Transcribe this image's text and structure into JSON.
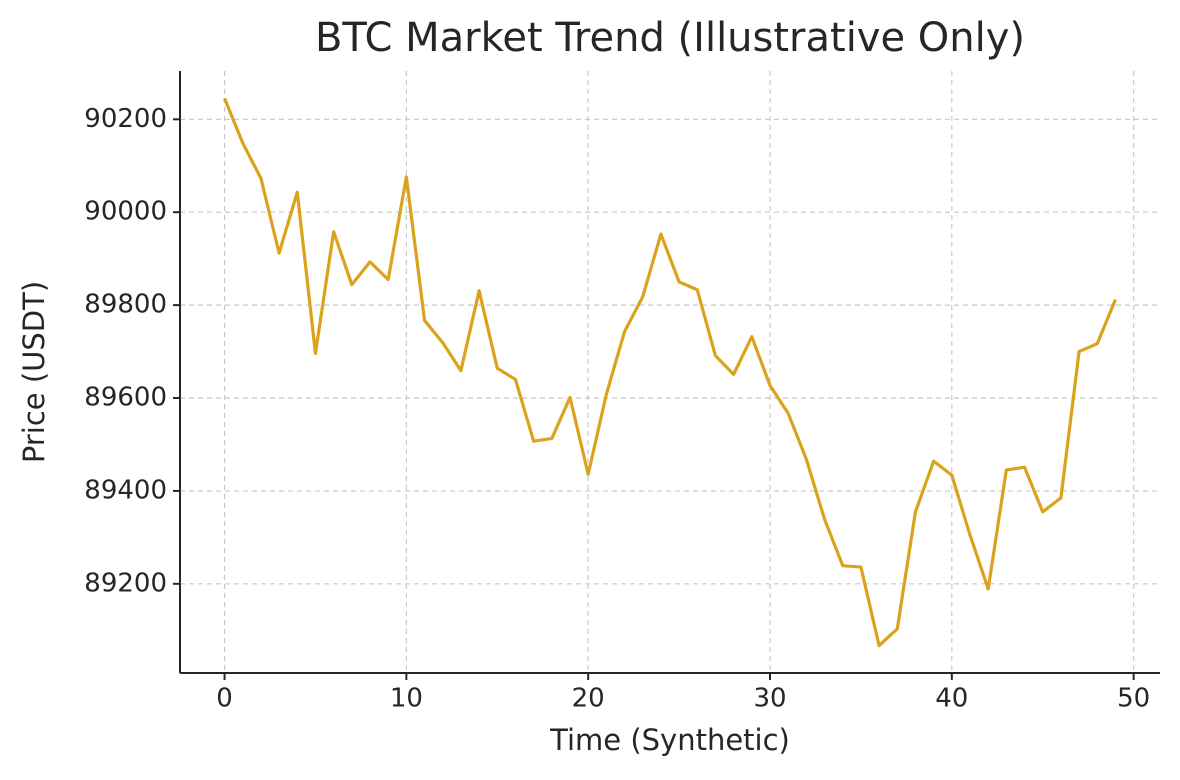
{
  "chart_data": {
    "type": "line",
    "title": "BTC Market Trend (Illustrative Only)",
    "x_label": "Time (Synthetic)",
    "y_label": "Price (USDT)",
    "x": [
      0,
      1,
      2,
      3,
      4,
      5,
      6,
      7,
      8,
      9,
      10,
      11,
      12,
      13,
      14,
      15,
      16,
      17,
      18,
      19,
      20,
      21,
      22,
      23,
      24,
      25,
      26,
      27,
      28,
      29,
      30,
      31,
      32,
      33,
      34,
      35,
      36,
      37,
      38,
      39,
      40,
      41,
      42,
      43,
      44,
      45,
      46,
      47,
      48,
      49
    ],
    "values": [
      90245,
      90149,
      90073,
      89912,
      90043,
      89696,
      89958,
      89844,
      89893,
      89855,
      90076,
      89767,
      89719,
      89659,
      89831,
      89664,
      89640,
      89507,
      89513,
      89601,
      89436,
      89608,
      89743,
      89818,
      89953,
      89850,
      89833,
      89691,
      89651,
      89732,
      89627,
      89567,
      89468,
      89339,
      89239,
      89236,
      89067,
      89103,
      89355,
      89464,
      89434,
      89305,
      89189,
      89445,
      89451,
      89355,
      89385,
      89700,
      89717,
      89812
    ],
    "color": "#dba21c",
    "xlim": [
      -2.45,
      51.45
    ],
    "xticks": [
      0,
      10,
      20,
      30,
      40,
      50
    ],
    "ylim": [
      89008,
      90304
    ],
    "yticks": [
      89200,
      89400,
      89600,
      89800,
      90000,
      90200
    ],
    "grid": true
  }
}
